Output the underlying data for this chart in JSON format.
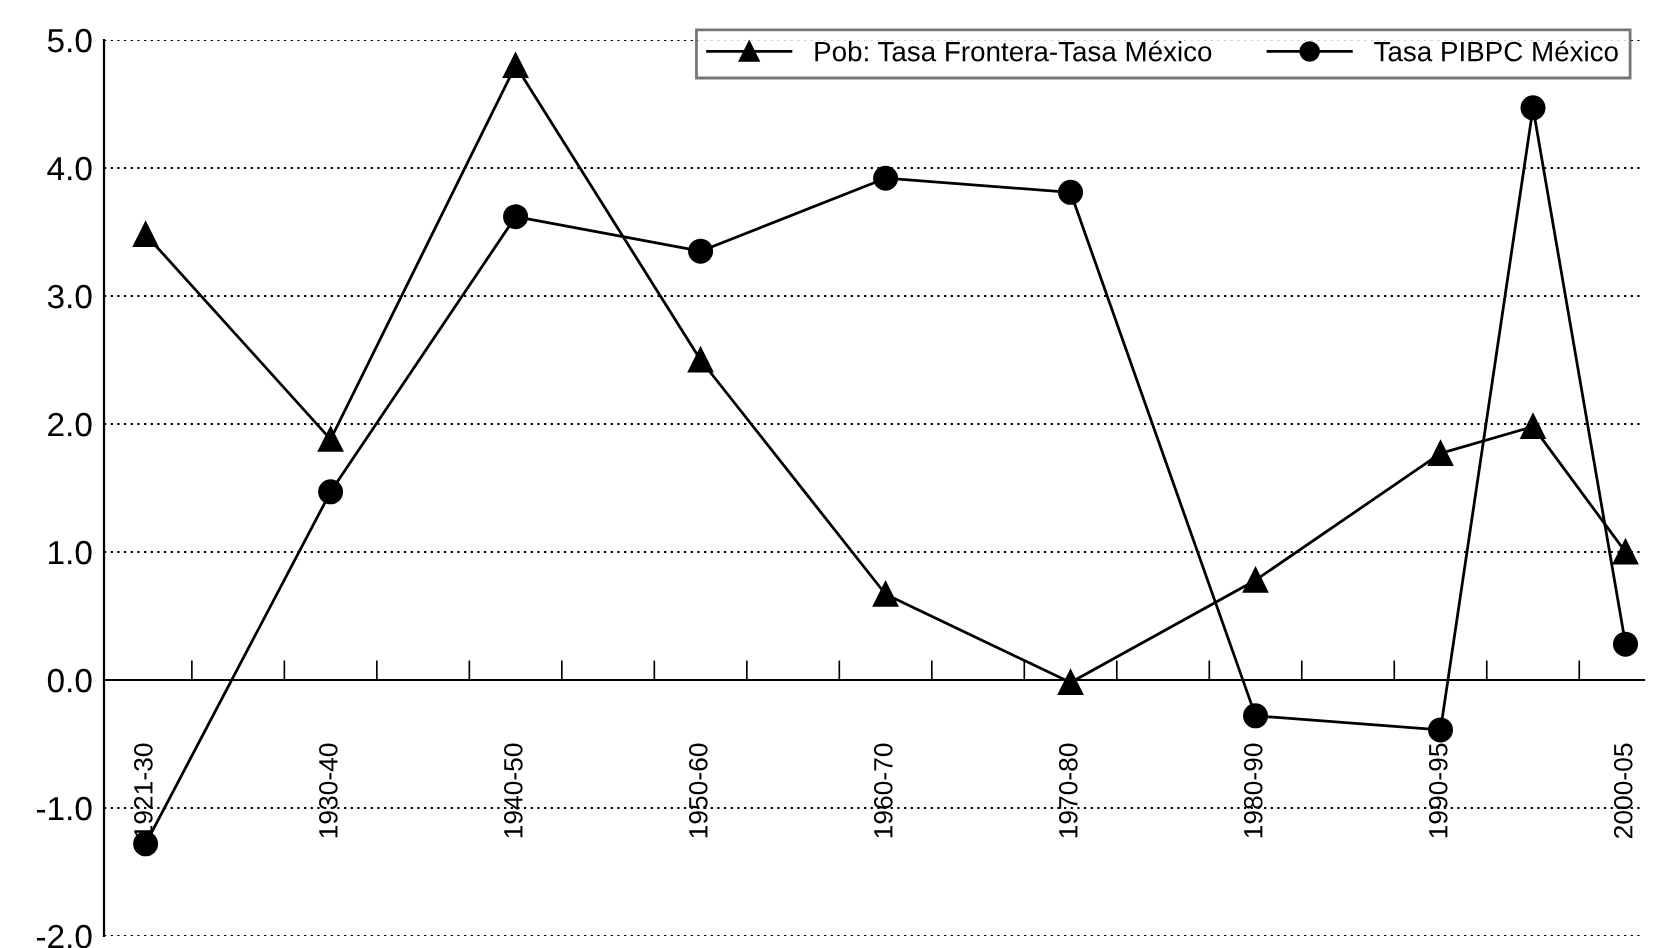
{
  "chart_data": {
    "type": "line",
    "categories": [
      "1921-30",
      null,
      "1930-40",
      null,
      "1940-50",
      null,
      "1950-60",
      null,
      "1960-70",
      null,
      "1970-80",
      null,
      "1980-90",
      null,
      "1990-95",
      null,
      "2000-05"
    ],
    "series": [
      {
        "name": "Pob: Tasa Frontera-Tasa México",
        "color": "#000000",
        "marker": "triangle",
        "values": [
          3.48,
          null,
          1.88,
          null,
          4.8,
          null,
          2.5,
          null,
          0.67,
          null,
          -0.02,
          null,
          0.78,
          null,
          1.77,
          1.98,
          1.0
        ]
      },
      {
        "name": "Tasa PIBPC México",
        "color": "#000000",
        "marker": "circle",
        "values": [
          -1.28,
          null,
          1.47,
          null,
          3.62,
          null,
          3.35,
          null,
          3.92,
          null,
          3.81,
          null,
          -0.28,
          null,
          -0.39,
          4.47,
          0.28
        ]
      }
    ],
    "ylim": [
      -2,
      5
    ],
    "yticks": [
      {
        "value": -2,
        "label": "-2.0"
      },
      {
        "value": -1,
        "label": "-1.0"
      },
      {
        "value": 0,
        "label": "0.0"
      },
      {
        "value": 1,
        "label": "1.0"
      },
      {
        "value": 2,
        "label": "2.0"
      },
      {
        "value": 3,
        "label": "3.0"
      },
      {
        "value": 4,
        "label": "4.0"
      },
      {
        "value": 5,
        "label": "5.0"
      }
    ],
    "grid": "y",
    "legend": "top right",
    "line_style": "solid"
  }
}
